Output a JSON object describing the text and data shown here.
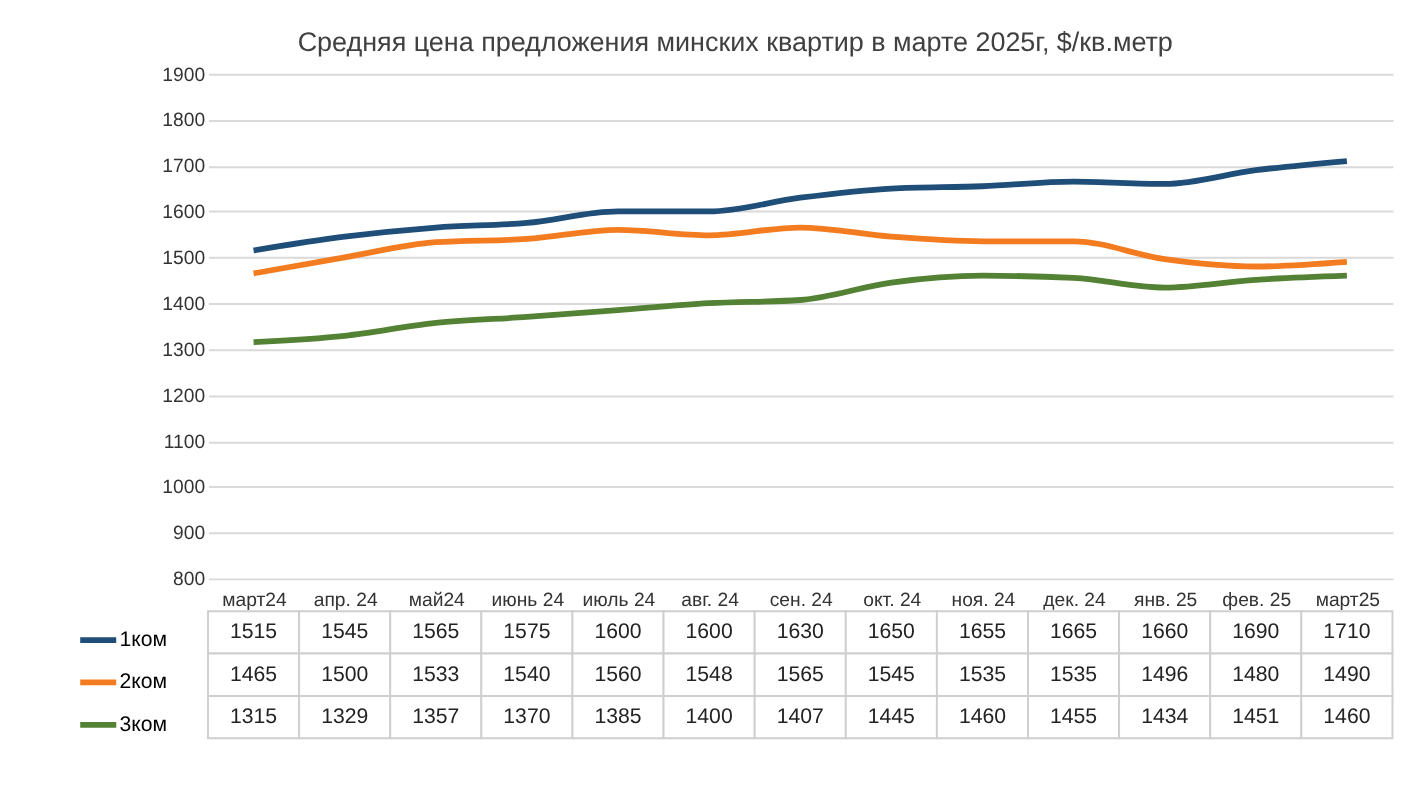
{
  "chart_data": {
    "type": "line",
    "title": "Средняя  цена предложения  минских квартир в марте 2025г, $/кв.метр",
    "categories": [
      "март24",
      "апр. 24",
      "май24",
      "июнь 24",
      "июль 24",
      "авг. 24",
      "сен. 24",
      "окт. 24",
      "ноя. 24",
      "дек. 24",
      "янв. 25",
      "фев. 25",
      "март25"
    ],
    "series": [
      {
        "name": "1ком",
        "color": "#1f4e79",
        "values": [
          1515,
          1545,
          1565,
          1575,
          1600,
          1600,
          1630,
          1650,
          1655,
          1665,
          1660,
          1690,
          1710
        ]
      },
      {
        "name": "2ком",
        "color": "#f47c20",
        "values": [
          1465,
          1500,
          1533,
          1540,
          1560,
          1548,
          1565,
          1545,
          1535,
          1535,
          1496,
          1480,
          1490
        ]
      },
      {
        "name": "3ком",
        "color": "#548235",
        "values": [
          1315,
          1329,
          1357,
          1370,
          1385,
          1400,
          1407,
          1445,
          1460,
          1455,
          1434,
          1451,
          1460
        ]
      }
    ],
    "ylim": [
      800,
      1900
    ],
    "yticks": [
      800,
      900,
      1000,
      1100,
      1200,
      1300,
      1400,
      1500,
      1600,
      1700,
      1800,
      1900
    ],
    "grid": "y",
    "legend": "bottom left",
    "data_labels": true,
    "marker": "none",
    "line_style": "solid"
  }
}
